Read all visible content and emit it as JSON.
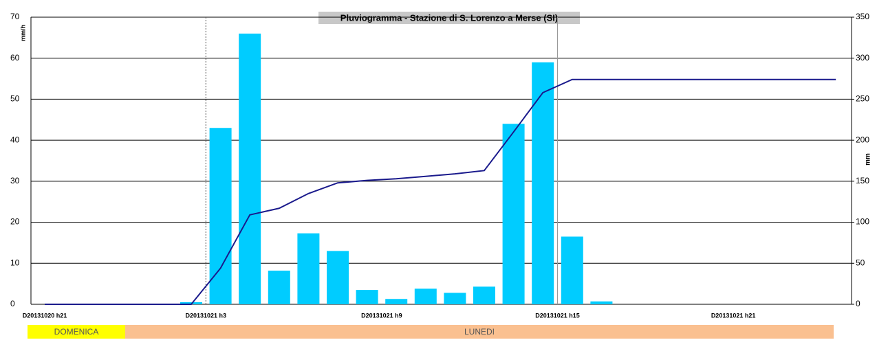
{
  "chart_data": {
    "type": "bar",
    "title": "Pluviogramma - Stazione di S. Lorenzo a Merse (SI)",
    "ylabel": "mm/h",
    "y2label": "mm",
    "categories": [
      null,
      null,
      null,
      null,
      null,
      null,
      null,
      null,
      null,
      null,
      null,
      null,
      null,
      null,
      null,
      null,
      null,
      null,
      null,
      null,
      null,
      null,
      null,
      null,
      null,
      null,
      null,
      null
    ],
    "xticks": [
      {
        "value": 0,
        "label": "D20131020 h21"
      },
      {
        "value": 5.5,
        "label": "D20131021 h3"
      },
      {
        "value": 11.5,
        "label": "D20131021 h9"
      },
      {
        "value": 17.5,
        "label": "D20131021 h15"
      },
      {
        "value": 23.5,
        "label": "D20131021 h21"
      }
    ],
    "series": [
      {
        "name": "mm/h",
        "type": "bar",
        "color": "#00ccff",
        "values": [
          0,
          0,
          0,
          0,
          0,
          0.5,
          43,
          66,
          8.2,
          17.3,
          13,
          3.5,
          1.3,
          3.8,
          2.8,
          4.3,
          44,
          59,
          16.5,
          0.7,
          0,
          0,
          0,
          0,
          0,
          0,
          0,
          0
        ]
      },
      {
        "name": "mm",
        "type": "line",
        "axis": "y2",
        "color": "#1a1a8c",
        "values": [
          0,
          0,
          0,
          0,
          0,
          0,
          44,
          109,
          117,
          135,
          148,
          151,
          153,
          156,
          159,
          163,
          210,
          258,
          274,
          274,
          274,
          274,
          274,
          274,
          274,
          274,
          274,
          274
        ]
      }
    ],
    "ylim": [
      0,
      70
    ],
    "yticks": [
      0,
      10,
      20,
      30,
      40,
      50,
      60,
      70
    ],
    "y2lim": [
      0,
      350
    ],
    "y2ticks": [
      0,
      50,
      100,
      150,
      200,
      250,
      300,
      350
    ],
    "grid": true,
    "day_labels": [
      "DOMENICA",
      "LUNEDI"
    ]
  }
}
